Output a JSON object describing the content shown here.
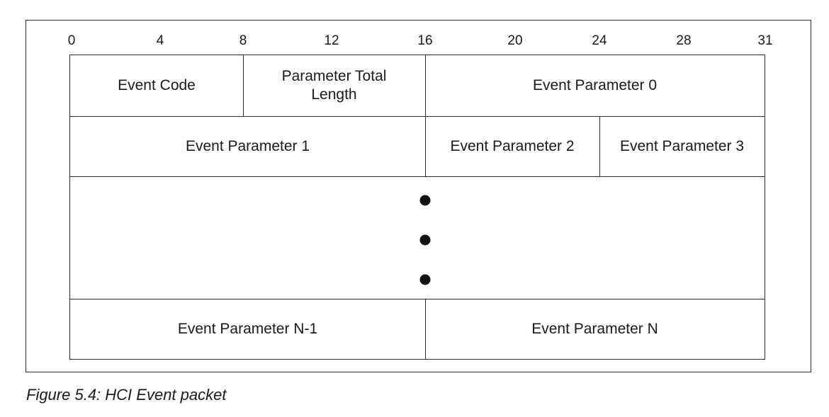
{
  "bit_ruler": [
    "0",
    "4",
    "8",
    "12",
    "16",
    "20",
    "24",
    "28",
    "31"
  ],
  "rows": {
    "row1": {
      "event_code": "Event Code",
      "param_total_length_line1": "Parameter Total",
      "param_total_length_line2": "Length",
      "event_param_0": "Event Parameter 0"
    },
    "row2": {
      "event_param_1": "Event Parameter 1",
      "event_param_2": "Event Parameter 2",
      "event_param_3": "Event Parameter 3"
    },
    "row4": {
      "event_param_n_minus_1": "Event Parameter N-1",
      "event_param_n": "Event Parameter N"
    }
  },
  "caption": "Figure 5.4:  HCI Event packet"
}
